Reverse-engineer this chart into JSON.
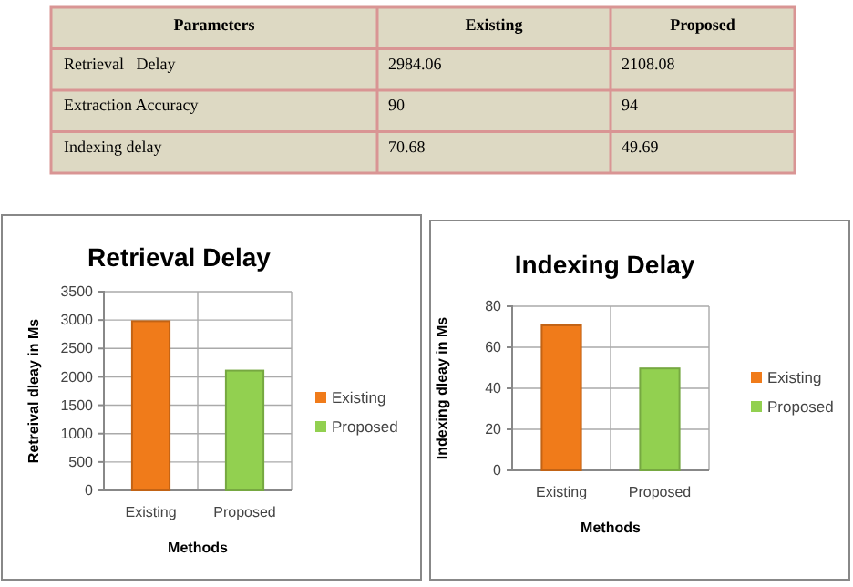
{
  "chart_data": [
    {
      "type": "other",
      "ylabel": "Parameters",
      "categories": [
        "Existing",
        "Proposed"
      ],
      "y_categories": [
        "Retrieval   Delay",
        "Extraction Accuracy",
        "Indexing delay"
      ],
      "cell_labels": [
        [
          "2984.06",
          "2108.08"
        ],
        [
          "90",
          "94"
        ],
        [
          "70.68",
          "49.69"
        ]
      ]
    },
    {
      "type": "bar",
      "title": "Retrieval Delay",
      "xlabel": "Methods",
      "ylabel": "Retreival dleay in Ms",
      "categories": [
        "Existing",
        "Proposed"
      ],
      "series": [
        {
          "name": "Existing",
          "color": "#f07b1a",
          "values": [
            2980,
            null
          ]
        },
        {
          "name": "Proposed",
          "color": "#92d050",
          "values": [
            null,
            2110
          ]
        }
      ],
      "ylim": [
        0,
        3500
      ],
      "yticks": [
        0,
        500,
        1000,
        1500,
        2000,
        2500,
        3000,
        3500
      ],
      "grid": true,
      "legend": "right"
    },
    {
      "type": "bar",
      "title": "Indexing Delay",
      "xlabel": "Methods",
      "ylabel": "Indexing dleay in Ms",
      "categories": [
        "Existing",
        "Proposed"
      ],
      "series": [
        {
          "name": "Existing",
          "color": "#f07b1a",
          "values": [
            70.7,
            null
          ]
        },
        {
          "name": "Proposed",
          "color": "#92d050",
          "values": [
            null,
            49.7
          ]
        }
      ],
      "ylim": [
        0,
        80
      ],
      "yticks": [
        0,
        20,
        40,
        60,
        80
      ],
      "grid": true,
      "legend": "right"
    }
  ]
}
